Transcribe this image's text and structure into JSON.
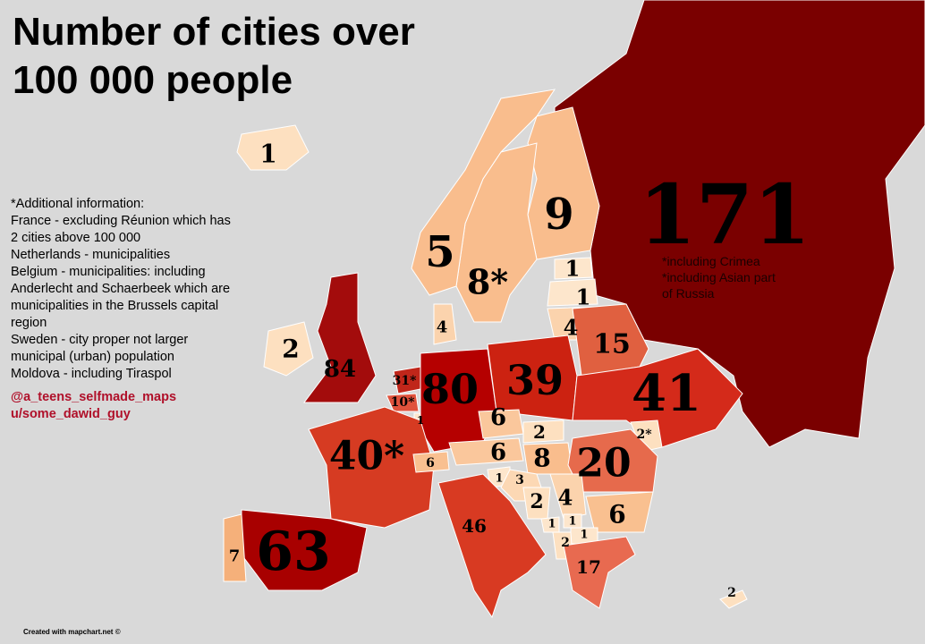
{
  "title_lines": [
    "Number of cities over",
    "100 000 people"
  ],
  "regions": [
    {
      "value": 171,
      "color": "#7a0000"
    },
    {
      "value": 9,
      "color": "#f9bd8d"
    },
    {
      "value": 8,
      "label": "8*",
      "color": "#f9bd8d"
    },
    {
      "value": 5,
      "color": "#f9bd8d"
    },
    {
      "value": 1,
      "color": "#fde0c0"
    },
    {
      "value": 1,
      "color": "#fde6cc"
    },
    {
      "value": 1,
      "color": "#fde6cc"
    },
    {
      "value": 4,
      "color": "#fbd3ad"
    },
    {
      "value": 4,
      "color": "#fbd3ad"
    },
    {
      "value": 84,
      "color": "#a30c0c"
    },
    {
      "value": 2,
      "color": "#fde0c0"
    },
    {
      "value": 31,
      "label": "31*",
      "color": "#c0261a"
    },
    {
      "value": 10,
      "label": "10*",
      "color": "#e0523c"
    },
    {
      "value": 1,
      "color": "#fde6cc"
    },
    {
      "value": 80,
      "color": "#b50000"
    },
    {
      "value": 39,
      "color": "#cc2211"
    },
    {
      "value": 15,
      "color": "#e06040"
    },
    {
      "value": 41,
      "color": "#d42a1a"
    },
    {
      "value": 2,
      "label": "2*",
      "color": "#fde0c0"
    },
    {
      "value": 40,
      "label": "40*",
      "color": "#d63b22"
    },
    {
      "value": 6,
      "color": "#f9c090"
    },
    {
      "value": 6,
      "color": "#fac79c"
    },
    {
      "value": 6,
      "color": "#fac79c"
    },
    {
      "value": 2,
      "color": "#fde0c0"
    },
    {
      "value": 8,
      "color": "#f9bd8d"
    },
    {
      "value": 20,
      "color": "#e66a4c"
    },
    {
      "value": 1,
      "color": "#fde6cc"
    },
    {
      "value": 3,
      "color": "#fcd8b4"
    },
    {
      "value": 2,
      "color": "#fde0c0"
    },
    {
      "value": 4,
      "color": "#fbd3ad"
    },
    {
      "value": 6,
      "color": "#f9c090"
    },
    {
      "value": 1,
      "color": "#fde6cc"
    },
    {
      "value": 1,
      "color": "#fde6cc"
    },
    {
      "value": 1,
      "color": "#fde6cc"
    },
    {
      "value": 2,
      "color": "#fde0c0"
    },
    {
      "value": 17,
      "color": "#e86a50"
    },
    {
      "value": 46,
      "color": "#d83a22"
    },
    {
      "value": 63,
      "color": "#a80000"
    },
    {
      "value": 7,
      "color": "#f5b07a"
    },
    {
      "value": 2,
      "color": "#fde0c0"
    }
  ],
  "russia_note": [
    "*including Crimea",
    "*including Asian part",
    "of Russia"
  ],
  "info_lines": [
    "*Additional information:",
    "France - excluding Réunion which has",
    "2 cities above 100 000",
    "Netherlands - municipalities",
    "Belgium - municipalities: including",
    "Anderlecht and Schaerbeek which are",
    "municipalities in the Brussels capital",
    "region",
    "Sweden - city proper not larger",
    "municipal (urban) population",
    "Moldova - including Tiraspol"
  ],
  "credits": [
    "@a_teens_selfmade_maps",
    "u/some_dawid_guy"
  ],
  "footer": "Created with mapchart.net ©"
}
